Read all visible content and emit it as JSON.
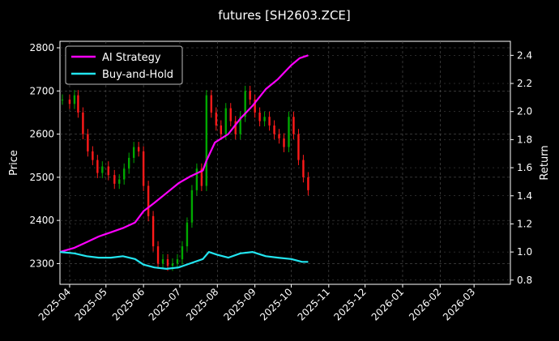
{
  "chart_data": {
    "type": "line",
    "title": "futures [SH2603.ZCE]",
    "ylabel_left": "Price",
    "ylabel_right": "Return",
    "xlim": [
      "2025-03-24",
      "2026-03-31"
    ],
    "ylim_left": [
      2252,
      2815
    ],
    "ylim_right": [
      0.77,
      2.5
    ],
    "x_ticks": [
      "2025-04",
      "2025-05",
      "2025-06",
      "2025-07",
      "2025-08",
      "2025-09",
      "2025-10",
      "2025-11",
      "2025-12",
      "2026-01",
      "2026-02",
      "2026-03"
    ],
    "y_ticks_left": [
      2300,
      2400,
      2500,
      2600,
      2700,
      2800
    ],
    "y_ticks_right": [
      "0.8",
      "1.0",
      "1.2",
      "1.4",
      "1.6",
      "1.8",
      "2.0",
      "2.2",
      "2.4"
    ],
    "grid": true,
    "legend_position": "top-left",
    "colors": {
      "background": "#000000",
      "ai": "#ff00ff",
      "bh": "#22e5f0",
      "up": "#00a800",
      "down": "#ff1a1a",
      "grid": "#555555",
      "text": "#ffffff"
    },
    "series": [
      {
        "name": "AI Strategy",
        "axis": "right",
        "x": [
          "2025-03-24",
          "2025-04-05",
          "2025-04-15",
          "2025-04-25",
          "2025-05-05",
          "2025-05-15",
          "2025-05-25",
          "2025-06-01",
          "2025-06-10",
          "2025-06-20",
          "2025-06-30",
          "2025-07-10",
          "2025-07-20",
          "2025-07-23",
          "2025-07-30",
          "2025-08-10",
          "2025-08-20",
          "2025-08-30",
          "2025-09-10",
          "2025-09-20",
          "2025-10-01",
          "2025-10-08",
          "2025-10-15"
        ],
        "values": [
          1.0,
          1.03,
          1.07,
          1.11,
          1.14,
          1.17,
          1.21,
          1.29,
          1.35,
          1.42,
          1.49,
          1.54,
          1.58,
          1.65,
          1.78,
          1.84,
          1.95,
          2.04,
          2.16,
          2.23,
          2.33,
          2.38,
          2.4
        ]
      },
      {
        "name": "Buy-and-Hold",
        "axis": "right",
        "x": [
          "2025-03-24",
          "2025-04-05",
          "2025-04-15",
          "2025-04-25",
          "2025-05-05",
          "2025-05-15",
          "2025-05-25",
          "2025-06-01",
          "2025-06-10",
          "2025-06-20",
          "2025-06-30",
          "2025-07-10",
          "2025-07-20",
          "2025-07-25",
          "2025-08-01",
          "2025-08-10",
          "2025-08-20",
          "2025-08-30",
          "2025-09-10",
          "2025-09-20",
          "2025-10-01",
          "2025-10-10",
          "2025-10-15"
        ],
        "values": [
          1.0,
          0.99,
          0.97,
          0.96,
          0.96,
          0.97,
          0.95,
          0.91,
          0.89,
          0.88,
          0.89,
          0.92,
          0.95,
          1.0,
          0.98,
          0.96,
          0.99,
          1.0,
          0.97,
          0.96,
          0.95,
          0.93,
          0.93
        ]
      }
    ],
    "price_candles": {
      "axis": "left",
      "points": [
        {
          "x": "2025-03-26",
          "close": 2680
        },
        {
          "x": "2025-04-01",
          "close": 2670
        },
        {
          "x": "2025-04-05",
          "close": 2690
        },
        {
          "x": "2025-04-08",
          "close": 2650
        },
        {
          "x": "2025-04-12",
          "close": 2600
        },
        {
          "x": "2025-04-16",
          "close": 2560
        },
        {
          "x": "2025-04-20",
          "close": 2540
        },
        {
          "x": "2025-04-24",
          "close": 2510
        },
        {
          "x": "2025-04-28",
          "close": 2525
        },
        {
          "x": "2025-05-03",
          "close": 2505
        },
        {
          "x": "2025-05-08",
          "close": 2485
        },
        {
          "x": "2025-05-12",
          "close": 2495
        },
        {
          "x": "2025-05-16",
          "close": 2520
        },
        {
          "x": "2025-05-20",
          "close": 2545
        },
        {
          "x": "2025-05-24",
          "close": 2570
        },
        {
          "x": "2025-05-28",
          "close": 2560
        },
        {
          "x": "2025-06-01",
          "close": 2480
        },
        {
          "x": "2025-06-05",
          "close": 2410
        },
        {
          "x": "2025-06-09",
          "close": 2340
        },
        {
          "x": "2025-06-13",
          "close": 2300
        },
        {
          "x": "2025-06-17",
          "close": 2310
        },
        {
          "x": "2025-06-21",
          "close": 2295
        },
        {
          "x": "2025-06-25",
          "close": 2300
        },
        {
          "x": "2025-06-29",
          "close": 2310
        },
        {
          "x": "2025-07-03",
          "close": 2340
        },
        {
          "x": "2025-07-07",
          "close": 2395
        },
        {
          "x": "2025-07-11",
          "close": 2470
        },
        {
          "x": "2025-07-15",
          "close": 2520
        },
        {
          "x": "2025-07-19",
          "close": 2480
        },
        {
          "x": "2025-07-23",
          "close": 2690
        },
        {
          "x": "2025-07-27",
          "close": 2650
        },
        {
          "x": "2025-07-31",
          "close": 2620
        },
        {
          "x": "2025-08-04",
          "close": 2600
        },
        {
          "x": "2025-08-08",
          "close": 2660
        },
        {
          "x": "2025-08-12",
          "close": 2630
        },
        {
          "x": "2025-08-16",
          "close": 2600
        },
        {
          "x": "2025-08-20",
          "close": 2640
        },
        {
          "x": "2025-08-24",
          "close": 2700
        },
        {
          "x": "2025-08-28",
          "close": 2680
        },
        {
          "x": "2025-09-01",
          "close": 2650
        },
        {
          "x": "2025-09-05",
          "close": 2630
        },
        {
          "x": "2025-09-09",
          "close": 2640
        },
        {
          "x": "2025-09-13",
          "close": 2620
        },
        {
          "x": "2025-09-17",
          "close": 2600
        },
        {
          "x": "2025-09-21",
          "close": 2590
        },
        {
          "x": "2025-09-25",
          "close": 2570
        },
        {
          "x": "2025-09-29",
          "close": 2640
        },
        {
          "x": "2025-10-03",
          "close": 2600
        },
        {
          "x": "2025-10-07",
          "close": 2540
        },
        {
          "x": "2025-10-11",
          "close": 2500
        },
        {
          "x": "2025-10-15",
          "close": 2470
        }
      ]
    }
  }
}
